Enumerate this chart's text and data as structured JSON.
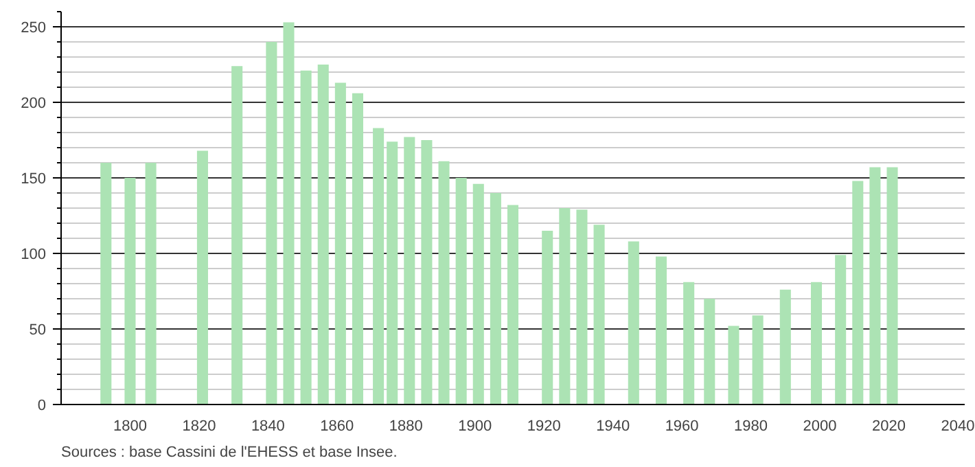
{
  "chart_data": {
    "type": "bar",
    "x": [
      1793,
      1800,
      1806,
      1821,
      1831,
      1841,
      1846,
      1851,
      1856,
      1861,
      1866,
      1872,
      1876,
      1881,
      1886,
      1891,
      1896,
      1901,
      1906,
      1911,
      1921,
      1926,
      1931,
      1936,
      1946,
      1954,
      1962,
      1968,
      1975,
      1982,
      1990,
      1999,
      2006,
      2011,
      2016,
      2021
    ],
    "values": [
      160,
      150,
      160,
      168,
      224,
      240,
      253,
      221,
      225,
      213,
      206,
      183,
      174,
      177,
      175,
      161,
      150,
      146,
      140,
      132,
      115,
      130,
      129,
      119,
      108,
      98,
      81,
      70,
      52,
      59,
      76,
      81,
      99,
      148,
      157,
      157
    ],
    "color": "#ace3b4",
    "xlim": [
      1780,
      2042
    ],
    "xticks": [
      1800,
      1820,
      1840,
      1860,
      1880,
      1900,
      1920,
      1940,
      1960,
      1980,
      2000,
      2020,
      2040
    ],
    "ylim": [
      0,
      260
    ],
    "yticks": [
      0,
      50,
      100,
      150,
      200,
      250
    ],
    "grid": "y",
    "annotations": [
      "Sources : base Cassini de l'EHESS et base Insee."
    ]
  }
}
